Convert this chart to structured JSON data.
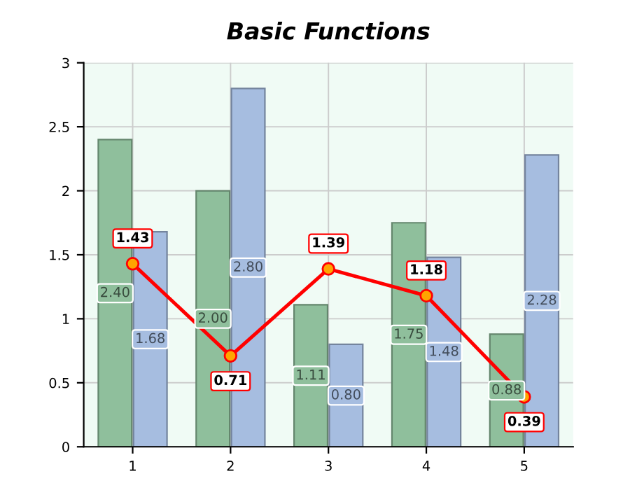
{
  "chart_data": {
    "type": "bar",
    "title": "Basic Functions",
    "categories": [
      "1",
      "2",
      "3",
      "4",
      "5"
    ],
    "series": [
      {
        "color": "#8fbf9c",
        "values": [
          2.4,
          2.0,
          1.11,
          1.75,
          0.88
        ],
        "value_labels": [
          "2.40",
          "2.00",
          "1.11",
          "1.75",
          "0.88"
        ]
      },
      {
        "color": "#a6bde0",
        "values": [
          1.68,
          2.8,
          0.8,
          1.48,
          2.28
        ],
        "value_labels": [
          "1.68",
          "2.80",
          "0.80",
          "1.48",
          "2.28"
        ]
      },
      {
        "type": "line",
        "color": "#ff0000",
        "marker": "circle",
        "line_style": "solid",
        "values": [
          1.43,
          0.71,
          1.39,
          1.18,
          0.39
        ],
        "value_labels": [
          "1.43",
          "0.71",
          "1.39",
          "1.18",
          "0.39"
        ]
      }
    ],
    "ylim": [
      0,
      3
    ],
    "yticks": [
      0,
      0.5,
      1,
      1.5,
      2,
      2.5,
      3
    ],
    "grid": true,
    "legend": false
  }
}
